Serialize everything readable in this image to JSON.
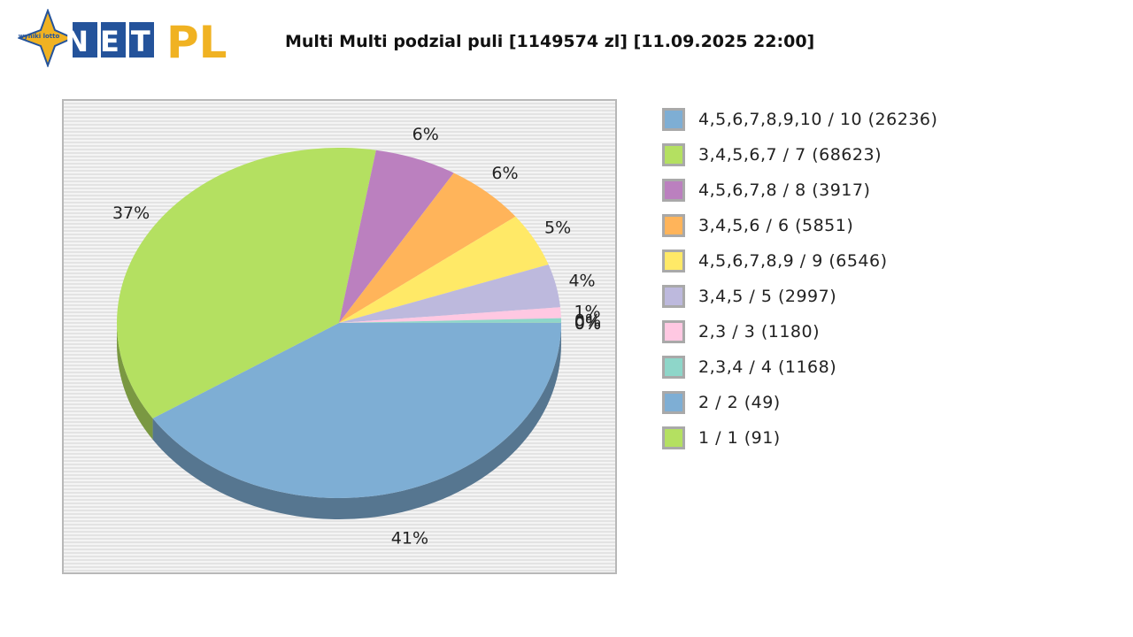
{
  "header": {
    "logo_badge": "wyniki lotto",
    "logo_text_net": "NET",
    "logo_text_pl": "PL",
    "title": "Multi Multi podzial puli [1149574 zl] [11.09.2025 22:00]"
  },
  "colors": {
    "blue": "#7eaed4",
    "green": "#b4e061",
    "purple": "#bb80bf",
    "orange": "#ffb45a",
    "yellow": "#ffe967",
    "lavender": "#bdb9dd",
    "pink": "#ffc8e2",
    "teal": "#8ed6c9",
    "logo_blue": "#24539b",
    "logo_gold": "#f0b222"
  },
  "chart_data": {
    "type": "pie",
    "title": "Multi Multi podzial puli [1149574 zl] [11.09.2025 22:00]",
    "legend_position": "right",
    "style": "3d",
    "slices": [
      {
        "label": "4,5,6,7,8,9,10 / 10 (26236)",
        "value": 41,
        "pct_label": "41%",
        "color": "#7eaed4"
      },
      {
        "label": "3,4,5,6,7 / 7 (68623)",
        "value": 37,
        "pct_label": "37%",
        "color": "#b4e061"
      },
      {
        "label": "4,5,6,7,8 / 8 (3917)",
        "value": 6,
        "pct_label": "6%",
        "color": "#bb80bf"
      },
      {
        "label": "3,4,5,6 / 6 (5851)",
        "value": 6,
        "pct_label": "6%",
        "color": "#ffb45a"
      },
      {
        "label": "4,5,6,7,8,9 / 9 (6546)",
        "value": 5,
        "pct_label": "5%",
        "color": "#ffe967"
      },
      {
        "label": "3,4,5 / 5 (2997)",
        "value": 4,
        "pct_label": "4%",
        "color": "#bdb9dd"
      },
      {
        "label": "2,3 / 3 (1180)",
        "value": 1,
        "pct_label": "1%",
        "color": "#ffc8e2"
      },
      {
        "label": "2,3,4 / 4 (1168)",
        "value": 0.4,
        "pct_label": "0%",
        "color": "#8ed6c9"
      },
      {
        "label": "2 / 2 (49)",
        "value": 0.02,
        "pct_label": "0%",
        "color": "#7eaed4"
      },
      {
        "label": "1 / 1 (91)",
        "value": 0.01,
        "pct_label": "0%",
        "color": "#b4e061"
      }
    ]
  }
}
